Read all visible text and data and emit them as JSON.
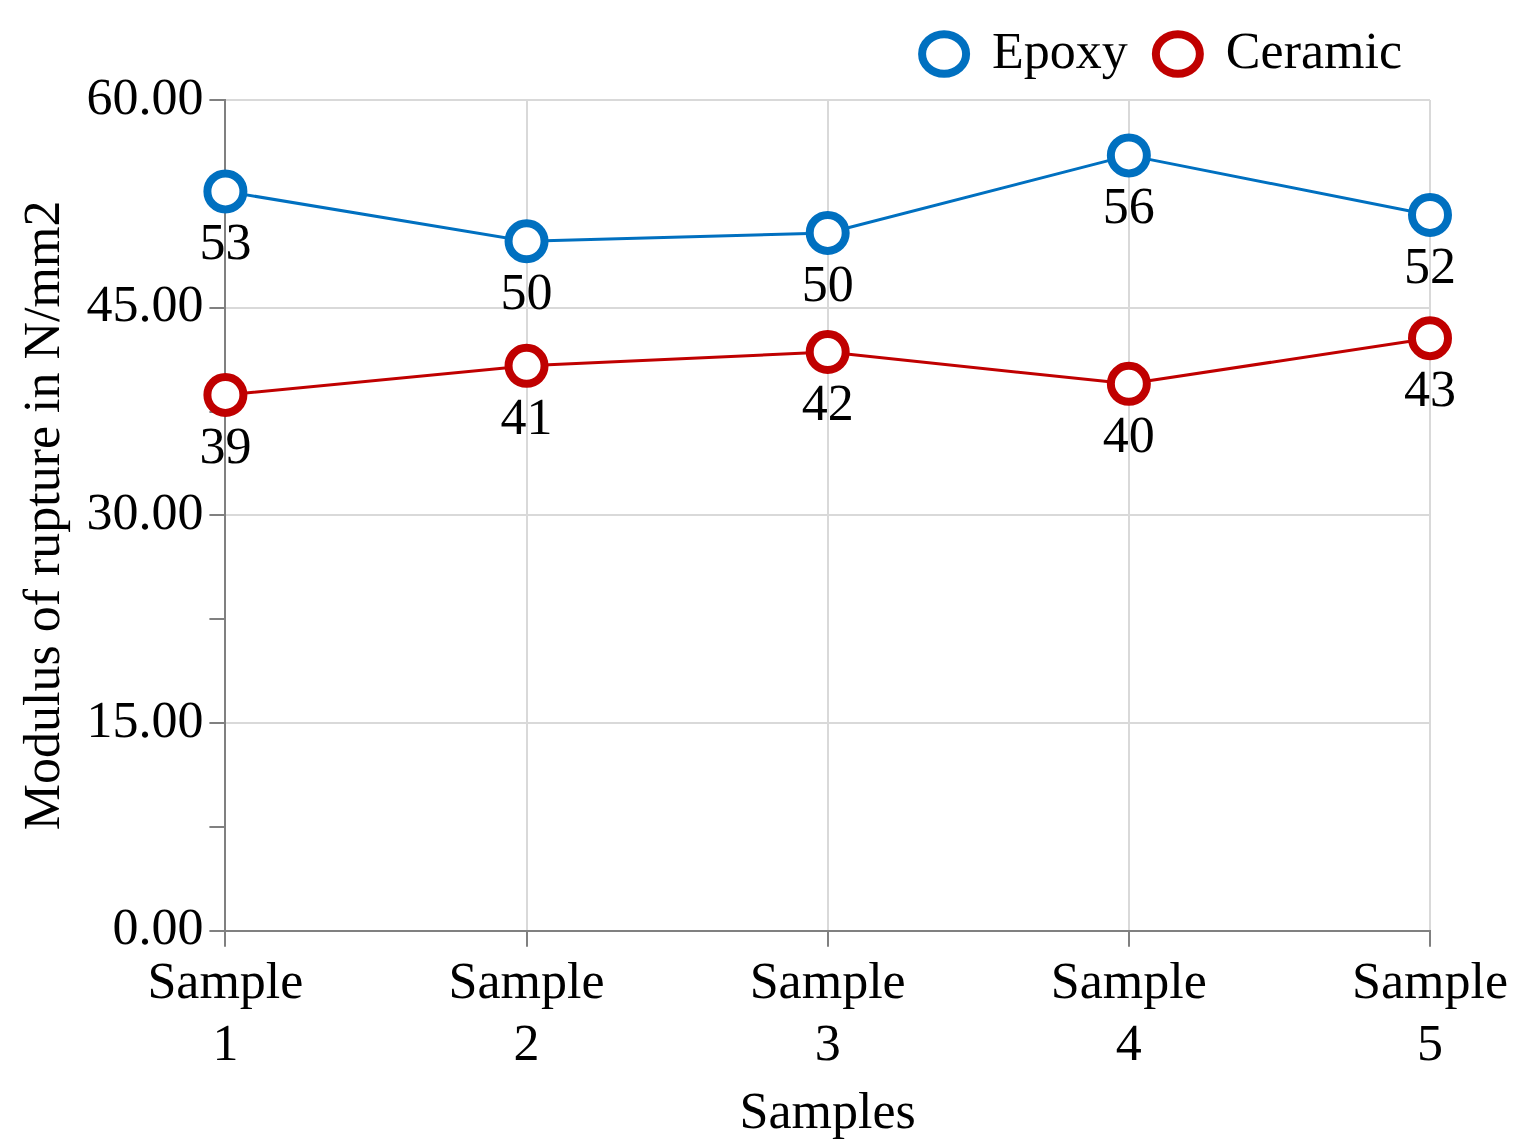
{
  "chart_data": {
    "type": "line",
    "xlabel": "Samples",
    "ylabel": "Modulus of rupture in N/mm2",
    "categories": [
      "Sample 1",
      "Sample 2",
      "Sample 3",
      "Sample 4",
      "Sample 5"
    ],
    "series": [
      {
        "name": "Epoxy",
        "color": "#0070c0",
        "values": [
          53.4,
          49.8,
          50.4,
          56.0,
          51.7
        ],
        "value_labels": [
          "53",
          "50",
          "50",
          "56",
          "52"
        ]
      },
      {
        "name": "Ceramic",
        "color": "#c00000",
        "values": [
          38.7,
          40.8,
          41.8,
          39.5,
          42.8
        ],
        "value_labels": [
          "39",
          "41",
          "42",
          "40",
          "43"
        ]
      }
    ],
    "ylim": [
      0,
      60
    ],
    "yticks": [
      {
        "value": 0,
        "label": "0.00"
      },
      {
        "value": 7.5,
        "label": null
      },
      {
        "value": 15,
        "label": "15.00"
      },
      {
        "value": 22.5,
        "label": null
      },
      {
        "value": 30,
        "label": "30.00"
      },
      {
        "value": 37.5,
        "label": null
      },
      {
        "value": 45,
        "label": "45.00"
      },
      {
        "value": 52.5,
        "label": null
      },
      {
        "value": 60,
        "label": "60.00"
      }
    ],
    "grid": true,
    "legend": "top right",
    "marker": "circle",
    "line_style": "solid"
  }
}
